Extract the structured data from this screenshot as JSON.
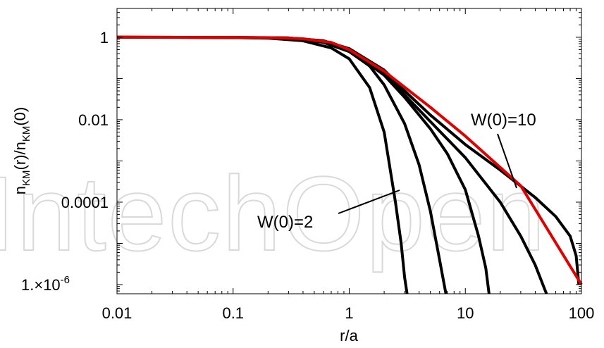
{
  "watermark": "IntechOpen",
  "chart_data": {
    "type": "line",
    "xlabel": "r/a",
    "ylabel": "n_KM(r)/n_KM(0)",
    "ylabel_parts": {
      "main": "n",
      "sub": "KM",
      "mid": "(r)/n",
      "sub2": "KM",
      "end": "(0)"
    },
    "xscale": "log",
    "yscale": "log",
    "xlim": [
      0.01,
      100
    ],
    "ylim": [
      6e-07,
      5
    ],
    "grid": false,
    "x_ticks": [
      {
        "value": 0.01,
        "label": "0.01"
      },
      {
        "value": 0.1,
        "label": "0.1"
      },
      {
        "value": 1,
        "label": "1"
      },
      {
        "value": 10,
        "label": "10"
      },
      {
        "value": 100,
        "label": "100"
      }
    ],
    "y_ticks": [
      {
        "value": 1,
        "label": "1"
      },
      {
        "value": 0.01,
        "label": "0.01"
      },
      {
        "value": 0.0001,
        "label": "0.0001"
      }
    ],
    "y_tick_sci": {
      "value": 1e-06,
      "mantissa": "1.×10",
      "exponent": "-6"
    },
    "annotations": [
      {
        "text": "W(0)=2",
        "series_index": 0
      },
      {
        "text": "W(0)=10",
        "series_index": 3
      }
    ],
    "series": [
      {
        "color": "#000000",
        "x": [
          0.01,
          0.1,
          0.2,
          0.4,
          0.7,
          1,
          1.5,
          2,
          2.5,
          2.8,
          3.0,
          3.1,
          3.15
        ],
        "y": [
          1,
          0.98,
          0.95,
          0.82,
          0.55,
          0.3,
          0.06,
          0.005,
          0.0001,
          1e-05,
          1.5e-06,
          8e-07,
          6e-07
        ]
      },
      {
        "color": "#000000",
        "x": [
          0.01,
          0.1,
          0.3,
          0.6,
          1,
          1.5,
          2,
          3,
          4,
          5,
          6,
          6.5,
          6.8
        ],
        "y": [
          1,
          0.99,
          0.95,
          0.75,
          0.45,
          0.2,
          0.07,
          0.008,
          0.0008,
          6e-05,
          4e-06,
          1.2e-06,
          6e-07
        ]
      },
      {
        "color": "#000000",
        "x": [
          0.01,
          0.1,
          0.3,
          0.6,
          1,
          2,
          3,
          5,
          7,
          10,
          13,
          15,
          16
        ],
        "y": [
          1,
          0.99,
          0.96,
          0.8,
          0.5,
          0.12,
          0.035,
          0.006,
          0.0015,
          0.0002,
          1.5e-05,
          2.5e-06,
          6e-07
        ]
      },
      {
        "color": "#000000",
        "x": [
          0.01,
          0.1,
          0.3,
          0.6,
          1,
          2,
          3,
          5,
          10,
          20,
          30,
          40,
          48,
          50
        ],
        "y": [
          1,
          0.99,
          0.96,
          0.82,
          0.52,
          0.14,
          0.04,
          0.009,
          0.0012,
          0.0001,
          1.5e-05,
          3e-06,
          8e-07,
          6e-07
        ]
      },
      {
        "color": "#000000",
        "x": [
          0.01,
          0.1,
          0.3,
          0.6,
          1,
          2,
          3,
          5,
          10,
          20,
          40,
          60,
          80,
          90,
          95
        ],
        "y": [
          1,
          0.99,
          0.96,
          0.82,
          0.53,
          0.16,
          0.05,
          0.013,
          0.0025,
          0.0006,
          0.00013,
          4.5e-05,
          1.5e-05,
          5e-06,
          1e-06
        ]
      },
      {
        "color": "#e00000",
        "x": [
          0.01,
          0.1,
          0.2,
          0.4,
          0.7,
          1,
          2,
          5,
          10,
          30,
          100
        ],
        "y": [
          1,
          0.995,
          0.98,
          0.92,
          0.75,
          0.5,
          0.15,
          0.02,
          0.004,
          0.00025,
          1e-06
        ]
      }
    ]
  }
}
